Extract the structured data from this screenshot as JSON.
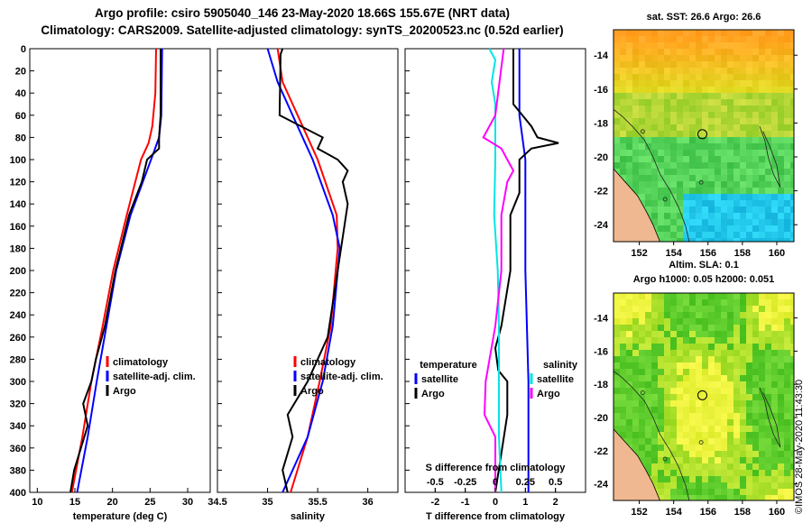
{
  "header": {
    "line1": "Argo profile: csiro 5905040_146 23-May-2020 18.66S 155.67E (NRT data)",
    "line2": "Climatology: CARS2009. Satellite-adjusted climatology: synTS_20200523.nc (0.52d earlier)"
  },
  "depth_ticks": [
    "0",
    "20",
    "40",
    "60",
    "80",
    "100",
    "120",
    "140",
    "160",
    "180",
    "200",
    "220",
    "240",
    "260",
    "280",
    "300",
    "320",
    "340",
    "360",
    "380",
    "400"
  ],
  "colors": {
    "climatology": "#ff0000",
    "satellite": "#0000ff",
    "argo": "#000000",
    "sal_sat": "#00e5e5",
    "sal_clim": "#ff00ff"
  },
  "chart_data": [
    {
      "type": "line",
      "name": "temperature",
      "xlabel": "temperature (deg C)",
      "ylabel": "depth",
      "xlim": [
        9,
        33
      ],
      "ylim": [
        400,
        0
      ],
      "xticks": [
        "10",
        "15",
        "20",
        "25",
        "30"
      ],
      "xtick_values": [
        10,
        15,
        20,
        25,
        30
      ],
      "legend": [
        "climatology",
        "satellite-adj. clim.",
        "Argo"
      ],
      "legend_position": "right-center",
      "series": [
        {
          "name": "climatology",
          "color": "#ff0000",
          "depth": [
            0,
            40,
            70,
            85,
            100,
            150,
            200,
            250,
            300,
            350,
            400
          ],
          "values": [
            25.8,
            25.7,
            25.3,
            24.8,
            23.8,
            21.9,
            20.1,
            18.7,
            17.2,
            16.0,
            14.6
          ]
        },
        {
          "name": "satellite-adj. clim.",
          "color": "#0000ff",
          "depth": [
            0,
            60,
            80,
            95,
            150,
            200,
            250,
            300,
            350,
            400
          ],
          "values": [
            26.6,
            26.5,
            26.2,
            25.4,
            22.4,
            20.5,
            19.2,
            17.9,
            16.7,
            15.3
          ]
        },
        {
          "name": "Argo",
          "color": "#000000",
          "depth": [
            0,
            60,
            80,
            90,
            100,
            120,
            150,
            200,
            250,
            280,
            300,
            320,
            340,
            360,
            380,
            400
          ],
          "values": [
            26.4,
            26.4,
            26.2,
            26.2,
            24.6,
            23.9,
            22.2,
            20.4,
            19.0,
            17.8,
            17.2,
            16.1,
            16.7,
            15.8,
            14.9,
            14.4
          ]
        }
      ]
    },
    {
      "type": "line",
      "name": "salinity",
      "xlabel": "salinity",
      "ylabel": "depth",
      "xlim": [
        34.5,
        36.3
      ],
      "ylim": [
        400,
        0
      ],
      "xticks": [
        "34.5",
        "35",
        "35.5",
        "36"
      ],
      "xtick_values": [
        34.5,
        35,
        35.5,
        36
      ],
      "legend": [
        "climatology",
        "satellite-adj. clim.",
        "Argo"
      ],
      "legend_position": "right-center",
      "series": [
        {
          "name": "climatology",
          "color": "#ff0000",
          "depth": [
            0,
            30,
            60,
            100,
            150,
            180,
            250,
            300,
            350,
            400
          ],
          "values": [
            35.1,
            35.15,
            35.3,
            35.5,
            35.69,
            35.7,
            35.63,
            35.52,
            35.4,
            35.23
          ],
          "note": ""
        },
        {
          "name": "satellite-adj. clim.",
          "color": "#0000ff",
          "depth": [
            0,
            30,
            60,
            100,
            150,
            180,
            250,
            300,
            350,
            400
          ],
          "values": [
            35.0,
            35.1,
            35.25,
            35.45,
            35.65,
            35.72,
            35.65,
            35.55,
            35.4,
            35.15
          ]
        },
        {
          "name": "Argo",
          "color": "#000000",
          "depth": [
            0,
            5,
            60,
            80,
            90,
            100,
            110,
            120,
            140,
            200,
            260,
            300,
            330,
            350,
            380,
            400
          ],
          "values": [
            35.15,
            35.13,
            35.12,
            35.55,
            35.5,
            35.7,
            35.8,
            35.75,
            35.8,
            35.7,
            35.6,
            35.4,
            35.2,
            35.25,
            35.15,
            35.2
          ]
        }
      ]
    },
    {
      "type": "line",
      "name": "difference",
      "xlabel": "T difference from climatology",
      "ylabel": "depth",
      "xlim": [
        -3,
        3
      ],
      "ylim": [
        400,
        0
      ],
      "xticks": [
        "-2",
        "-1",
        "0",
        "1",
        "2"
      ],
      "xtick_values": [
        -2,
        -1,
        0,
        1,
        2
      ],
      "top_axis_label": "S difference from climatology",
      "top_ticks": [
        "-0.5",
        "-0.25",
        "0",
        "0.25",
        "0.5"
      ],
      "top_tick_values": [
        -0.5,
        -0.25,
        0,
        0.25,
        0.5
      ],
      "legend_left": {
        "title": "temperature",
        "items": [
          "satellite",
          "Argo"
        ]
      },
      "legend_right": {
        "title": "salinity",
        "items": [
          "satellite",
          "Argo"
        ]
      },
      "series": [
        {
          "name": "T satellite",
          "axis": "T",
          "color": "#0000ff",
          "depth": [
            0,
            60,
            80,
            100,
            150,
            200,
            300,
            400
          ],
          "values": [
            0.8,
            0.8,
            0.9,
            1.0,
            1.0,
            1.0,
            1.1,
            1.1
          ]
        },
        {
          "name": "T Argo",
          "axis": "T",
          "color": "#000000",
          "depth": [
            0,
            50,
            70,
            80,
            85,
            90,
            100,
            130,
            150,
            200,
            250,
            270,
            290,
            300,
            330,
            400
          ],
          "values": [
            0.6,
            0.6,
            1.2,
            1.4,
            2.1,
            1.2,
            0.8,
            0.8,
            0.5,
            0.5,
            0.2,
            0.0,
            0.1,
            0.4,
            0.4,
            0.0
          ]
        },
        {
          "name": "S satellite",
          "axis": "S",
          "color": "#00e5e5",
          "depth": [
            0,
            10,
            30,
            50,
            100,
            150,
            200,
            250,
            300,
            350,
            400
          ],
          "values": [
            -0.05,
            0.0,
            -0.03,
            0.0,
            0.0,
            -0.01,
            0.02,
            0.03,
            0.03,
            0.03,
            0.05
          ]
        },
        {
          "name": "S Argo",
          "axis": "S",
          "color": "#ff00ff",
          "depth": [
            0,
            60,
            80,
            90,
            100,
            110,
            120,
            150,
            200,
            250,
            300,
            330,
            350,
            400
          ],
          "values": [
            0.07,
            0.0,
            -0.1,
            0.05,
            0.1,
            0.15,
            0.1,
            0.05,
            0.05,
            0.0,
            -0.08,
            -0.09,
            0.0,
            0.0
          ]
        }
      ]
    },
    {
      "type": "heatmap",
      "name": "sst_map",
      "title": "sat. SST: 26.6 Argo: 26.6",
      "xlim": [
        150.5,
        161
      ],
      "ylim": [
        -25,
        -12.5
      ],
      "xticks": [
        "152",
        "154",
        "156",
        "158",
        "160"
      ],
      "xtick_values": [
        152,
        154,
        156,
        158,
        160
      ],
      "yticks": [
        "-14",
        "-16",
        "-18",
        "-20",
        "-22",
        "-24"
      ],
      "ytick_values": [
        -14,
        -16,
        -18,
        -20,
        -22,
        -24
      ],
      "argo_position": {
        "lon": 155.67,
        "lat": -18.66
      }
    },
    {
      "type": "heatmap",
      "name": "sla_map",
      "title": "Altim. SLA: 0.1",
      "subtitle": "Argo h1000: 0.05 h2000: 0.051",
      "xlim": [
        150.5,
        161
      ],
      "ylim": [
        -25,
        -12.5
      ],
      "xticks": [
        "152",
        "154",
        "156",
        "158",
        "160"
      ],
      "xtick_values": [
        152,
        154,
        156,
        158,
        160
      ],
      "yticks": [
        "-14",
        "-16",
        "-18",
        "-20",
        "-22",
        "-24"
      ],
      "ytick_values": [
        -14,
        -16,
        -18,
        -20,
        -22,
        -24
      ],
      "argo_position": {
        "lon": 155.67,
        "lat": -18.66
      }
    }
  ],
  "stamp": "©IMOS 28-May-2020 11:43:30"
}
